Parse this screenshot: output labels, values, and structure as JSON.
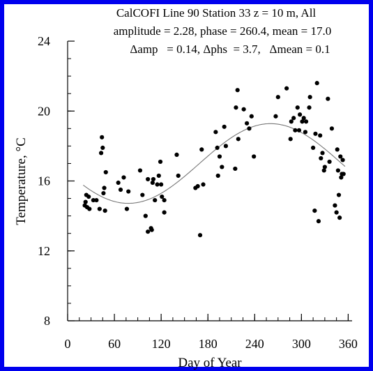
{
  "chart_data": {
    "type": "scatter",
    "title_lines": [
      "CalCOFI Line 90 Station 33 z = 10 m, All",
      "amplitude = 2.28, phase = 260.4, mean = 17.0",
      "Δamp   = 0.14, Δphs  = 3.7,   Δmean = 0.1"
    ],
    "xlabel": "Day of Year",
    "ylabel": "Temperature, °C",
    "xlim": [
      0,
      365
    ],
    "ylim": [
      8,
      24
    ],
    "x_ticks": [
      0,
      60,
      120,
      180,
      240,
      300,
      360
    ],
    "y_ticks": [
      8,
      12,
      16,
      20,
      24
    ],
    "x_minor_step": 15,
    "y_minor_step": 1,
    "grid": false,
    "fit": {
      "amplitude": 2.28,
      "phase": 260.4,
      "mean": 17.0,
      "period": 365
    },
    "points": [
      [
        22,
        14.6
      ],
      [
        23,
        14.8
      ],
      [
        24,
        15.2
      ],
      [
        25,
        14.5
      ],
      [
        27,
        15.1
      ],
      [
        28,
        14.4
      ],
      [
        33,
        14.9
      ],
      [
        37,
        14.9
      ],
      [
        41,
        14.4
      ],
      [
        43,
        17.6
      ],
      [
        44,
        18.5
      ],
      [
        45,
        17.9
      ],
      [
        46,
        15.3
      ],
      [
        47,
        15.6
      ],
      [
        48,
        14.3
      ],
      [
        49,
        16.5
      ],
      [
        65,
        15.9
      ],
      [
        68,
        15.5
      ],
      [
        72,
        16.2
      ],
      [
        76,
        14.4
      ],
      [
        78,
        15.4
      ],
      [
        93,
        16.6
      ],
      [
        96,
        15.2
      ],
      [
        100,
        14.0
      ],
      [
        103,
        16.1
      ],
      [
        103,
        13.1
      ],
      [
        107,
        13.3
      ],
      [
        108,
        13.2
      ],
      [
        109,
        15.9
      ],
      [
        110,
        16.1
      ],
      [
        112,
        14.9
      ],
      [
        115,
        15.8
      ],
      [
        117,
        16.3
      ],
      [
        119,
        17.1
      ],
      [
        120,
        15.8
      ],
      [
        121,
        15.1
      ],
      [
        124,
        14.9
      ],
      [
        124,
        14.2
      ],
      [
        140,
        17.5
      ],
      [
        142,
        16.3
      ],
      [
        164,
        15.6
      ],
      [
        167,
        15.7
      ],
      [
        170,
        12.9
      ],
      [
        172,
        17.8
      ],
      [
        174,
        15.8
      ],
      [
        190,
        18.8
      ],
      [
        192,
        17.9
      ],
      [
        193,
        16.3
      ],
      [
        195,
        17.4
      ],
      [
        198,
        16.8
      ],
      [
        201,
        19.1
      ],
      [
        203,
        18.0
      ],
      [
        215,
        16.7
      ],
      [
        216,
        20.2
      ],
      [
        218,
        21.2
      ],
      [
        219,
        18.4
      ],
      [
        226,
        20.1
      ],
      [
        230,
        19.3
      ],
      [
        233,
        19.0
      ],
      [
        236,
        19.7
      ],
      [
        239,
        17.4
      ],
      [
        267,
        19.7
      ],
      [
        270,
        20.8
      ],
      [
        281,
        21.3
      ],
      [
        286,
        18.4
      ],
      [
        287,
        19.4
      ],
      [
        290,
        19.6
      ],
      [
        292,
        18.9
      ],
      [
        295,
        20.2
      ],
      [
        297,
        18.9
      ],
      [
        298,
        19.8
      ],
      [
        301,
        19.4
      ],
      [
        303,
        19.6
      ],
      [
        305,
        18.8
      ],
      [
        306,
        19.4
      ],
      [
        310,
        20.2
      ],
      [
        311,
        20.8
      ],
      [
        315,
        17.9
      ],
      [
        317,
        14.3
      ],
      [
        318,
        18.7
      ],
      [
        320,
        21.6
      ],
      [
        322,
        13.7
      ],
      [
        324,
        18.6
      ],
      [
        325,
        17.3
      ],
      [
        327,
        17.6
      ],
      [
        329,
        16.6
      ],
      [
        330,
        16.8
      ],
      [
        334,
        20.7
      ],
      [
        336,
        17.1
      ],
      [
        339,
        19.0
      ],
      [
        343,
        14.6
      ],
      [
        345,
        14.2
      ],
      [
        346,
        17.8
      ],
      [
        347,
        16.6
      ],
      [
        348,
        15.2
      ],
      [
        349,
        13.9
      ],
      [
        350,
        17.4
      ],
      [
        351,
        16.2
      ],
      [
        352,
        16.4
      ],
      [
        353,
        17.2
      ],
      [
        354,
        16.4
      ]
    ]
  }
}
